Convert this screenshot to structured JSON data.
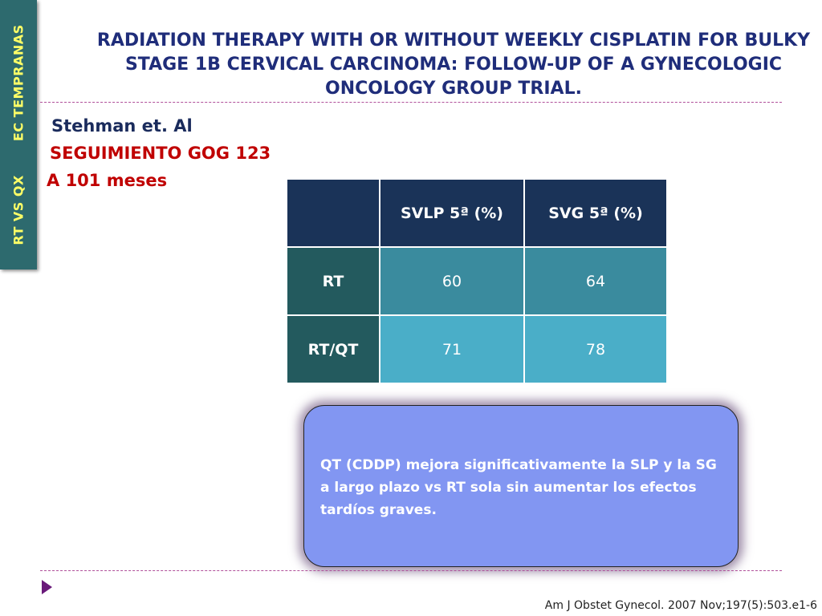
{
  "side_tab": {
    "label_left": "RT VS QX",
    "label_right": "EC TEMPRANAS"
  },
  "title": "RADIATION THERAPY WITH OR WITHOUT WEEKLY CISPLATIN FOR BULKY STAGE 1B CERVICAL CARCINOMA: FOLLOW-UP OF A GYNECOLOGIC ONCOLOGY GROUP TRIAL.",
  "authors": "Stehman  et. Al",
  "follow_up": "SEGUIMIENTO GOG 123",
  "period": "A 101 meses",
  "table": {
    "corner": "",
    "headers": [
      "SVLP 5ª (%)",
      "SVG 5ª (%)"
    ],
    "rows": [
      {
        "label": "RT",
        "values": [
          "60",
          "64"
        ]
      },
      {
        "label": "RT/QT",
        "values": [
          "71",
          "78"
        ]
      }
    ]
  },
  "note": "QT (CDDP) mejora significativamente la SLP y la SG a largo plazo vs RT sola sin aumentar los efectos tardíos graves.",
  "citation": "Am J Obstet Gynecol. 2007 Nov;197(5):503.e1-6",
  "colors": {
    "side_tab_bg": "#2d6a6e",
    "side_tab_text": "#ffff66",
    "title": "#1f2d7a",
    "accent_red": "#c00000",
    "table_header": "#1a3358",
    "note_box": "#8296f2"
  }
}
